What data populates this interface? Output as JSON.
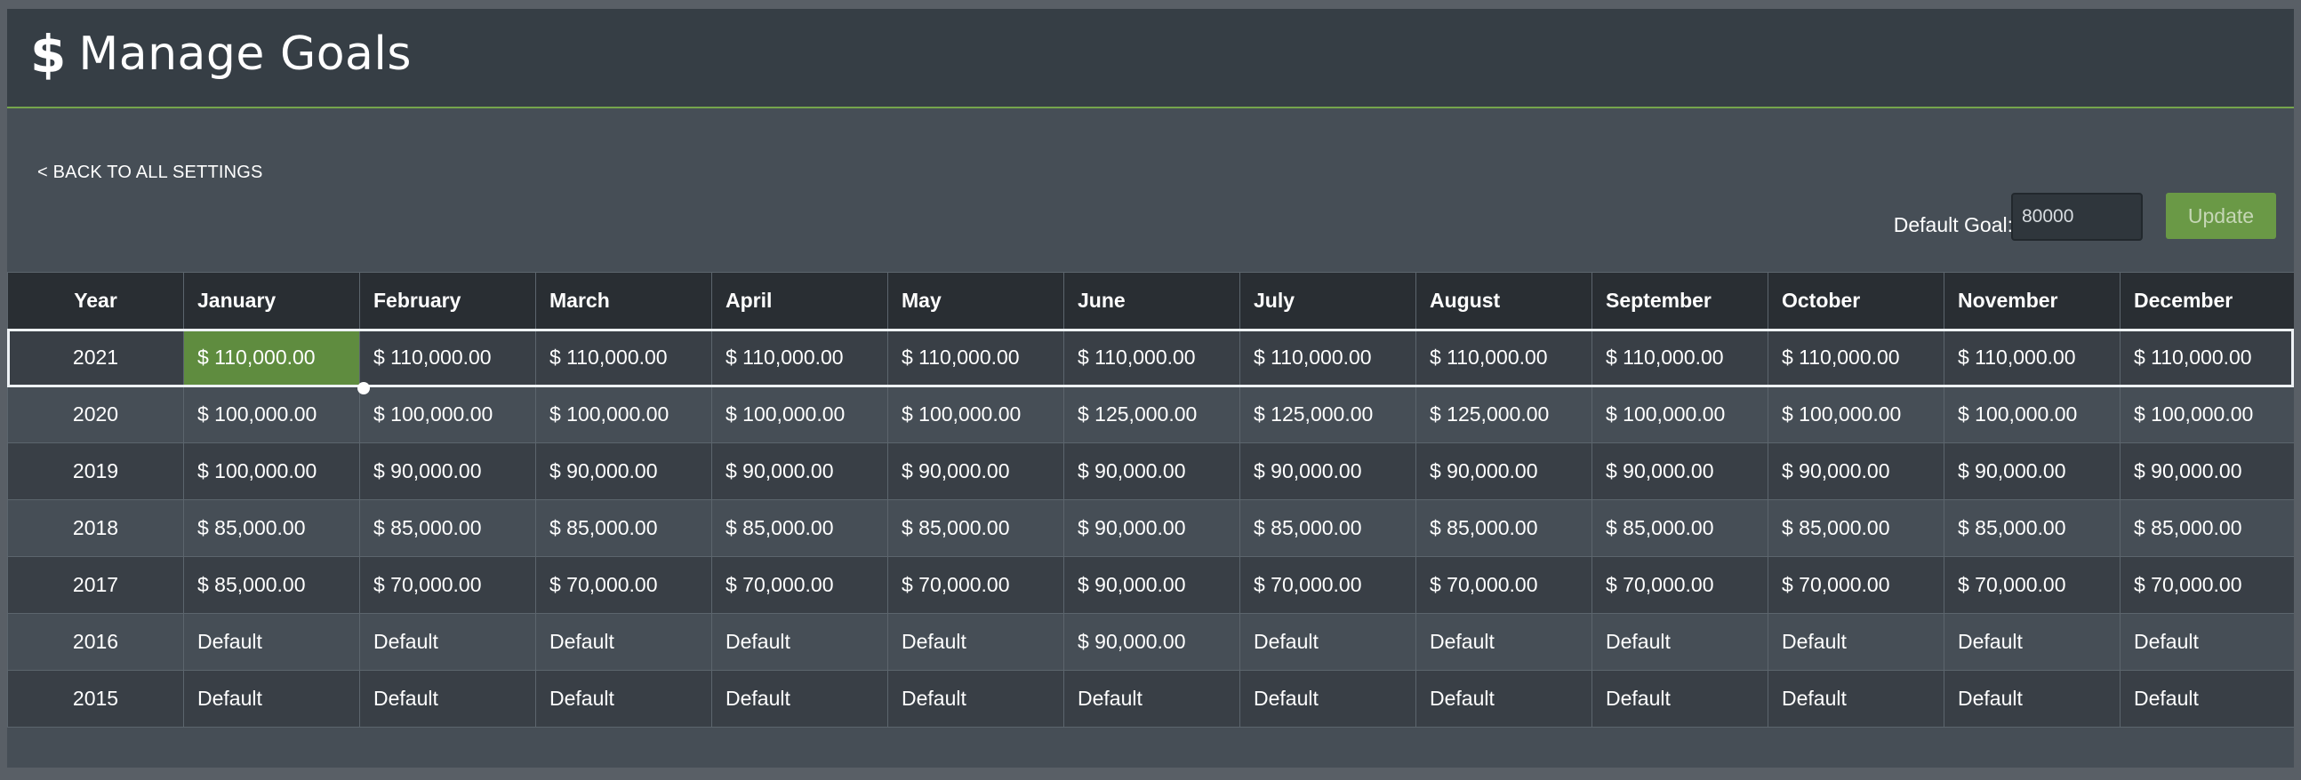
{
  "header": {
    "title": "Manage Goals",
    "icon": "dollar-icon",
    "icon_glyph": "$"
  },
  "nav": {
    "back_label": "< BACK TO ALL SETTINGS"
  },
  "default_goal": {
    "label": "Default Goal:",
    "value": "80000",
    "button_label": "Update"
  },
  "colors": {
    "accent": "#76a54c",
    "header_bg": "#363e45",
    "panel_bg": "#464e56",
    "active_cell": "#5f8c3f"
  },
  "table": {
    "columns": [
      "Year",
      "January",
      "February",
      "March",
      "April",
      "May",
      "June",
      "July",
      "August",
      "September",
      "October",
      "November",
      "December"
    ],
    "rows": [
      {
        "year": "2021",
        "values": [
          "$ 110,000.00",
          "$ 110,000.00",
          "$ 110,000.00",
          "$ 110,000.00",
          "$ 110,000.00",
          "$ 110,000.00",
          "$ 110,000.00",
          "$ 110,000.00",
          "$ 110,000.00",
          "$ 110,000.00",
          "$ 110,000.00",
          "$ 110,000.00"
        ]
      },
      {
        "year": "2020",
        "values": [
          "$ 100,000.00",
          "$ 100,000.00",
          "$ 100,000.00",
          "$ 100,000.00",
          "$ 100,000.00",
          "$ 125,000.00",
          "$ 125,000.00",
          "$ 125,000.00",
          "$ 100,000.00",
          "$ 100,000.00",
          "$ 100,000.00",
          "$ 100,000.00"
        ]
      },
      {
        "year": "2019",
        "values": [
          "$ 100,000.00",
          "$ 90,000.00",
          "$ 90,000.00",
          "$ 90,000.00",
          "$ 90,000.00",
          "$ 90,000.00",
          "$ 90,000.00",
          "$ 90,000.00",
          "$ 90,000.00",
          "$ 90,000.00",
          "$ 90,000.00",
          "$ 90,000.00"
        ]
      },
      {
        "year": "2018",
        "values": [
          "$ 85,000.00",
          "$ 85,000.00",
          "$ 85,000.00",
          "$ 85,000.00",
          "$ 85,000.00",
          "$ 90,000.00",
          "$ 85,000.00",
          "$ 85,000.00",
          "$ 85,000.00",
          "$ 85,000.00",
          "$ 85,000.00",
          "$ 85,000.00"
        ]
      },
      {
        "year": "2017",
        "values": [
          "$ 85,000.00",
          "$ 70,000.00",
          "$ 70,000.00",
          "$ 70,000.00",
          "$ 70,000.00",
          "$ 90,000.00",
          "$ 70,000.00",
          "$ 70,000.00",
          "$ 70,000.00",
          "$ 70,000.00",
          "$ 70,000.00",
          "$ 70,000.00"
        ]
      },
      {
        "year": "2016",
        "values": [
          "Default",
          "Default",
          "Default",
          "Default",
          "Default",
          "$ 90,000.00",
          "Default",
          "Default",
          "Default",
          "Default",
          "Default",
          "Default"
        ]
      },
      {
        "year": "2015",
        "values": [
          "Default",
          "Default",
          "Default",
          "Default",
          "Default",
          "Default",
          "Default",
          "Default",
          "Default",
          "Default",
          "Default",
          "Default"
        ]
      }
    ]
  }
}
